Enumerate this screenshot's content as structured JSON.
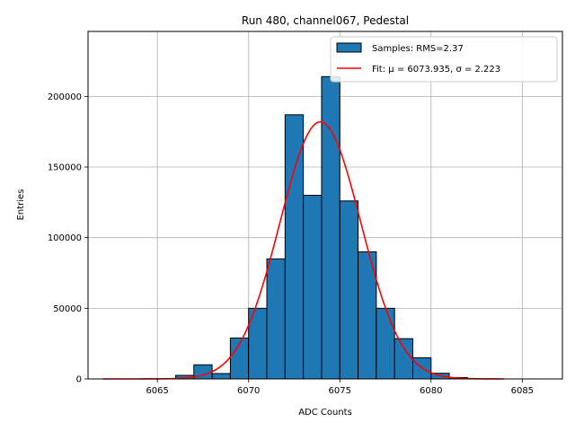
{
  "chart_data": {
    "type": "bar",
    "title": "Run 480, channel067, Pedestal",
    "xlabel": "ADC Counts",
    "ylabel": "Entries",
    "xlim": [
      6061.2,
      6087.2
    ],
    "ylim": [
      0,
      246000
    ],
    "xticks": [
      6065,
      6070,
      6075,
      6080,
      6085
    ],
    "yticks": [
      0,
      50000,
      100000,
      150000,
      200000
    ],
    "grid": true,
    "legend_position": "top-right",
    "bins": {
      "left_edges": [
        6066,
        6067,
        6068,
        6069,
        6070,
        6071,
        6072,
        6073,
        6074,
        6075,
        6076,
        6077,
        6078,
        6079,
        6080,
        6081
      ],
      "width": 1,
      "counts": [
        2500,
        10000,
        3800,
        29000,
        50000,
        85000,
        187000,
        130000,
        214000,
        126000,
        90000,
        50000,
        28500,
        15000,
        4000,
        1000
      ]
    },
    "fit": {
      "x_range": [
        6062,
        6084
      ],
      "mu": 6073.935,
      "sigma": 2.223,
      "amplitude": 182000
    },
    "series": [
      {
        "name": "Samples: RMS=2.37",
        "kind": "histogram",
        "color": "#1f77b4"
      },
      {
        "name": "Fit: μ = 6073.935, σ = 2.223",
        "kind": "line",
        "color": "#ff0000"
      }
    ]
  }
}
